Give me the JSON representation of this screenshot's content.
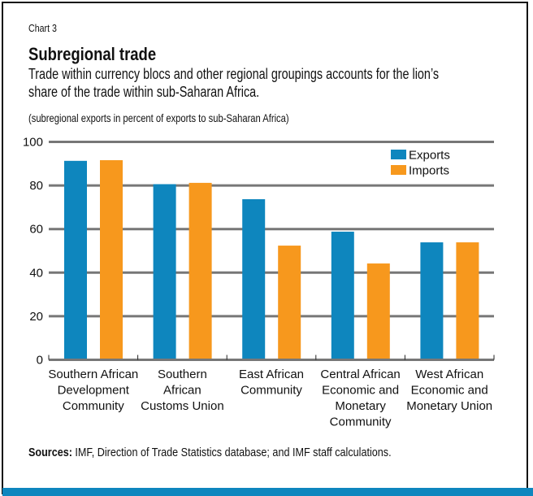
{
  "header": {
    "chart_number": "Chart 3",
    "title": "Subregional trade",
    "subtitle_line1": "Trade within currency blocs and other regional groupings accounts for the lion’s",
    "subtitle_line2": "share of the trade within sub-Saharan Africa.",
    "unit_note": "(subregional exports in percent of exports to sub-Saharan Africa)"
  },
  "footer": {
    "sources_label": "Sources:",
    "sources_text": " IMF, Direction of Trade Statistics database; and IMF staff calculations."
  },
  "colors": {
    "exports": "#0e86be",
    "imports": "#f7981d",
    "grid": "#777777",
    "band": "#0e86be"
  },
  "chart_data": {
    "type": "bar",
    "title": "Subregional trade",
    "xlabel": "",
    "ylabel": "(subregional exports in percent of exports to sub-Saharan Africa)",
    "ylim": [
      0,
      100
    ],
    "yticks": [
      0,
      20,
      40,
      60,
      80,
      100
    ],
    "grid": true,
    "legend_position": "top-right",
    "categories": [
      [
        "Southern African",
        "Development",
        "Community"
      ],
      [
        "Southern",
        "African",
        "Customs Union"
      ],
      [
        "East African",
        "Community"
      ],
      [
        "Central African",
        "Economic and",
        "Monetary",
        "Community"
      ],
      [
        "West African",
        "Economic and",
        "Monetary Union"
      ]
    ],
    "series": [
      {
        "name": "Exports",
        "values": [
          91.3,
          80.6,
          73.7,
          58.8,
          53.9
        ]
      },
      {
        "name": "Imports",
        "values": [
          91.6,
          81.2,
          52.4,
          44.2,
          53.9
        ]
      }
    ]
  }
}
